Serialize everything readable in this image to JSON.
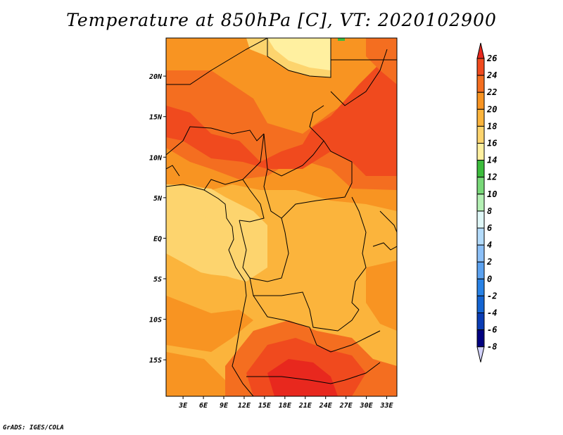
{
  "title": "Temperature at 850hPa [C], VT: 2020102900",
  "credit": "GrADS: IGES/COLA",
  "map": {
    "lat_ticks": [
      "20N",
      "15N",
      "10N",
      "5N",
      "EQ",
      "5S",
      "10S",
      "15S"
    ],
    "lon_ticks": [
      "3E",
      "6E",
      "9E",
      "12E",
      "15E",
      "18E",
      "21E",
      "24E",
      "27E",
      "30E",
      "33E"
    ],
    "lat_values": [
      20,
      15,
      10,
      5,
      0,
      -5,
      -10,
      -15
    ],
    "lon_values": [
      3,
      6,
      9,
      12,
      15,
      18,
      21,
      24,
      27,
      30,
      33
    ],
    "lon_range": [
      0.5,
      34.5
    ],
    "lat_range": [
      -19.5,
      24.7
    ]
  },
  "colorbar": {
    "labels": [
      "26",
      "24",
      "22",
      "20",
      "18",
      "16",
      "14",
      "12",
      "10",
      "8",
      "6",
      "4",
      "2",
      "0",
      "-2",
      "-4",
      "-6",
      "-8"
    ],
    "colors": [
      "#e8281e",
      "#f04a1e",
      "#f46e20",
      "#f89422",
      "#fbb43c",
      "#fdd46e",
      "#fff0a0",
      "#3cbc3c",
      "#78d878",
      "#b4f0b4",
      "#e0f8f8",
      "#b4dcfc",
      "#8cc0f8",
      "#5ca2f0",
      "#2882e6",
      "#1464d2",
      "#0a3cb4",
      "#000080",
      "#d2d2fa"
    ]
  }
}
